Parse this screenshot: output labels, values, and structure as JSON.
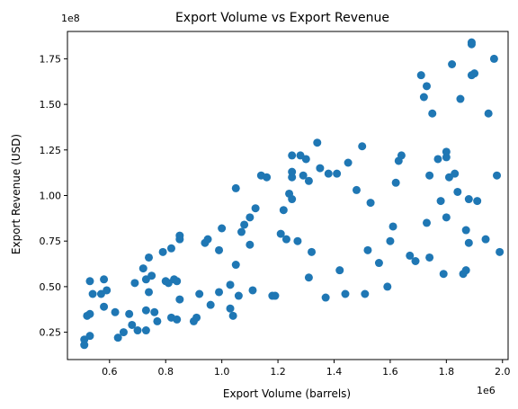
{
  "chart_data": {
    "type": "scatter",
    "title": "Export Volume vs Export Revenue",
    "xlabel": "Export Volume (barrels)",
    "ylabel": "Export Revenue (USD)",
    "x_offset_label": "1e6",
    "y_offset_label": "1e8",
    "xlim": [
      0.45,
      2.02
    ],
    "ylim": [
      0.1,
      1.9
    ],
    "x_ticks": [
      0.6,
      0.8,
      1.0,
      1.2,
      1.4,
      1.6,
      1.8,
      2.0
    ],
    "x_tick_labels": [
      "0.6",
      "0.8",
      "1.0",
      "1.2",
      "1.4",
      "1.6",
      "1.8",
      "2.0"
    ],
    "y_ticks": [
      0.25,
      0.5,
      0.75,
      1.0,
      1.25,
      1.5,
      1.75
    ],
    "y_tick_labels": [
      "0.25",
      "0.50",
      "0.75",
      "1.00",
      "1.25",
      "1.50",
      "1.75"
    ],
    "grid": false,
    "color": "#1f77b4",
    "series": [
      {
        "points": [
          [
            0.51,
            0.18
          ],
          [
            0.51,
            0.21
          ],
          [
            0.52,
            0.34
          ],
          [
            0.53,
            0.35
          ],
          [
            0.53,
            0.53
          ],
          [
            0.53,
            0.23
          ],
          [
            0.54,
            0.46
          ],
          [
            0.57,
            0.46
          ],
          [
            0.58,
            0.54
          ],
          [
            0.59,
            0.48
          ],
          [
            0.58,
            0.39
          ],
          [
            0.62,
            0.36
          ],
          [
            0.63,
            0.22
          ],
          [
            0.65,
            0.25
          ],
          [
            0.67,
            0.35
          ],
          [
            0.68,
            0.29
          ],
          [
            0.69,
            0.52
          ],
          [
            0.7,
            0.26
          ],
          [
            0.72,
            0.6
          ],
          [
            0.73,
            0.26
          ],
          [
            0.73,
            0.37
          ],
          [
            0.73,
            0.54
          ],
          [
            0.74,
            0.66
          ],
          [
            0.74,
            0.47
          ],
          [
            0.75,
            0.56
          ],
          [
            0.76,
            0.36
          ],
          [
            0.77,
            0.31
          ],
          [
            0.79,
            0.69
          ],
          [
            0.8,
            0.53
          ],
          [
            0.81,
            0.52
          ],
          [
            0.82,
            0.71
          ],
          [
            0.82,
            0.33
          ],
          [
            0.83,
            0.54
          ],
          [
            0.84,
            0.53
          ],
          [
            0.84,
            0.32
          ],
          [
            0.85,
            0.43
          ],
          [
            0.85,
            0.76
          ],
          [
            0.85,
            0.78
          ],
          [
            0.9,
            0.31
          ],
          [
            0.91,
            0.33
          ],
          [
            0.92,
            0.46
          ],
          [
            0.94,
            0.74
          ],
          [
            0.95,
            0.76
          ],
          [
            0.96,
            0.4
          ],
          [
            0.99,
            0.47
          ],
          [
            0.99,
            0.7
          ],
          [
            1.0,
            0.82
          ],
          [
            1.03,
            0.38
          ],
          [
            1.03,
            0.51
          ],
          [
            1.04,
            0.34
          ],
          [
            1.05,
            0.62
          ],
          [
            1.05,
            1.04
          ],
          [
            1.06,
            0.45
          ],
          [
            1.07,
            0.8
          ],
          [
            1.08,
            0.84
          ],
          [
            1.1,
            0.73
          ],
          [
            1.1,
            0.88
          ],
          [
            1.11,
            0.48
          ],
          [
            1.12,
            0.93
          ],
          [
            1.14,
            1.11
          ],
          [
            1.16,
            1.1
          ],
          [
            1.18,
            0.45
          ],
          [
            1.19,
            0.45
          ],
          [
            1.21,
            0.79
          ],
          [
            1.22,
            0.92
          ],
          [
            1.23,
            0.76
          ],
          [
            1.24,
            1.01
          ],
          [
            1.25,
            0.98
          ],
          [
            1.25,
            1.1
          ],
          [
            1.25,
            1.13
          ],
          [
            1.25,
            1.22
          ],
          [
            1.27,
            0.75
          ],
          [
            1.28,
            1.22
          ],
          [
            1.29,
            1.11
          ],
          [
            1.3,
            1.2
          ],
          [
            1.31,
            0.55
          ],
          [
            1.31,
            1.08
          ],
          [
            1.32,
            0.69
          ],
          [
            1.34,
            1.29
          ],
          [
            1.35,
            1.15
          ],
          [
            1.37,
            0.44
          ],
          [
            1.38,
            1.12
          ],
          [
            1.41,
            1.12
          ],
          [
            1.42,
            0.59
          ],
          [
            1.44,
            0.46
          ],
          [
            1.45,
            1.18
          ],
          [
            1.48,
            1.03
          ],
          [
            1.5,
            1.27
          ],
          [
            1.51,
            0.46
          ],
          [
            1.52,
            0.7
          ],
          [
            1.53,
            0.96
          ],
          [
            1.56,
            0.63
          ],
          [
            1.59,
            0.5
          ],
          [
            1.6,
            0.75
          ],
          [
            1.61,
            0.83
          ],
          [
            1.62,
            1.07
          ],
          [
            1.63,
            1.19
          ],
          [
            1.64,
            1.22
          ],
          [
            1.67,
            0.67
          ],
          [
            1.69,
            0.64
          ],
          [
            1.71,
            1.66
          ],
          [
            1.72,
            1.54
          ],
          [
            1.73,
            1.6
          ],
          [
            1.73,
            0.85
          ],
          [
            1.74,
            0.66
          ],
          [
            1.74,
            1.11
          ],
          [
            1.75,
            1.45
          ],
          [
            1.77,
            1.2
          ],
          [
            1.78,
            0.97
          ],
          [
            1.79,
            0.57
          ],
          [
            1.8,
            0.88
          ],
          [
            1.81,
            1.1
          ],
          [
            1.8,
            1.21
          ],
          [
            1.8,
            1.24
          ],
          [
            1.82,
            1.72
          ],
          [
            1.83,
            1.12
          ],
          [
            1.84,
            1.02
          ],
          [
            1.85,
            1.53
          ],
          [
            1.86,
            0.57
          ],
          [
            1.87,
            0.59
          ],
          [
            1.87,
            0.81
          ],
          [
            1.88,
            0.98
          ],
          [
            1.88,
            0.74
          ],
          [
            1.89,
            1.66
          ],
          [
            1.89,
            1.84
          ],
          [
            1.89,
            1.83
          ],
          [
            1.9,
            1.67
          ],
          [
            1.91,
            0.97
          ],
          [
            1.94,
            0.76
          ],
          [
            1.95,
            1.45
          ],
          [
            1.97,
            1.75
          ],
          [
            1.98,
            1.11
          ],
          [
            1.99,
            0.69
          ]
        ]
      }
    ]
  }
}
